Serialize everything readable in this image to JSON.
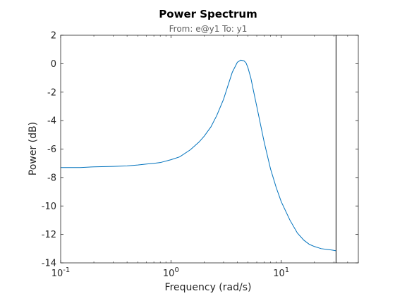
{
  "chart_data": {
    "type": "line",
    "title": "Power Spectrum",
    "subtitle": "From: e@y1  To: y1",
    "xlabel": "Frequency  (rad/s)",
    "ylabel": "Power (dB)",
    "xscale": "log",
    "xlim": [
      0.1,
      50
    ],
    "ylim": [
      -14,
      2
    ],
    "grid": false,
    "x_ticks": [
      {
        "base": "10",
        "exp": "-1",
        "value": 0.1
      },
      {
        "base": "10",
        "exp": "0",
        "value": 1
      },
      {
        "base": "10",
        "exp": "1",
        "value": 10
      }
    ],
    "y_ticks": [
      2,
      0,
      -2,
      -4,
      -6,
      -8,
      -10,
      -12,
      -14
    ],
    "y_tick_labels": [
      "2",
      "0",
      "-2",
      "-4",
      "-6",
      "-8",
      "-10",
      "-12",
      "-14"
    ],
    "nyquist_frequency": 31.4,
    "series": [
      {
        "color": "#0072bd",
        "x": [
          0.1,
          0.15,
          0.2,
          0.3,
          0.4,
          0.5,
          0.6,
          0.7,
          0.8,
          1.0,
          1.2,
          1.5,
          1.8,
          2.0,
          2.3,
          2.6,
          3.0,
          3.3,
          3.6,
          4.0,
          4.3,
          4.6,
          4.8,
          5.0,
          5.3,
          5.6,
          6.0,
          6.5,
          7.0,
          8.0,
          9.0,
          10.0,
          12.0,
          14.0,
          16.0,
          18.0,
          20.0,
          23.0,
          26.0,
          29.0,
          31.4
        ],
        "y": [
          -7.3,
          -7.3,
          -7.25,
          -7.22,
          -7.18,
          -7.12,
          -7.05,
          -7.0,
          -6.95,
          -6.75,
          -6.55,
          -6.05,
          -5.5,
          -5.1,
          -4.45,
          -3.65,
          -2.5,
          -1.5,
          -0.6,
          0.1,
          0.25,
          0.2,
          0.05,
          -0.3,
          -1.0,
          -1.9,
          -3.0,
          -4.3,
          -5.5,
          -7.4,
          -8.7,
          -9.7,
          -11.0,
          -11.9,
          -12.4,
          -12.7,
          -12.85,
          -13.0,
          -13.05,
          -13.1,
          -13.15
        ]
      }
    ]
  }
}
